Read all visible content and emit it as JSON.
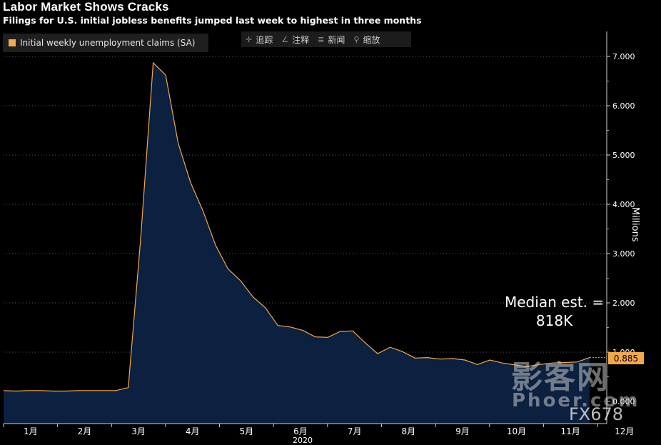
{
  "title": "Labor Market Shows Cracks",
  "subtitle": "Filings for U.S. initial jobless benefits jumped last week to highest in three months",
  "legend": {
    "label": "Initial weekly unemployment claims (SA)",
    "color": "#f4a84a"
  },
  "toolbar": [
    {
      "icon": "crosshair-icon",
      "glyph": "✛",
      "label": "追踪"
    },
    {
      "icon": "pen-icon",
      "glyph": "∠",
      "label": "注释"
    },
    {
      "icon": "news-icon",
      "glyph": "≣",
      "label": "新闻"
    },
    {
      "icon": "zoom-icon",
      "glyph": "⚲",
      "label": "缩放"
    }
  ],
  "annotation": {
    "line1": "Median est. =",
    "line2": "818K"
  },
  "last_value_label": "0.885",
  "year_label": "2020",
  "watermark": {
    "cn": "影客网",
    "en": "Phoer.com",
    "fx": "FX678"
  },
  "colors": {
    "line": "#f4a84a",
    "fill": "#0c2040",
    "background": "#000000"
  },
  "chart_data": {
    "type": "area",
    "ylabel": "Millions",
    "ylim": [
      0,
      7.5
    ],
    "yticks": [
      0,
      1,
      2,
      3,
      4,
      5,
      6,
      7
    ],
    "ytick_labels": [
      "0.000",
      "1.000",
      "2.000",
      "3.000",
      "4.000",
      "5.000",
      "6.000",
      "7.000"
    ],
    "month_labels": [
      "1月",
      "2月",
      "3月",
      "4月",
      "5月",
      "6月",
      "7月",
      "8月",
      "9月",
      "10月",
      "11月",
      "12月"
    ],
    "x_week_start": 0,
    "series": [
      {
        "name": "Initial weekly unemployment claims (SA)",
        "values": [
          0.22,
          0.21,
          0.22,
          0.22,
          0.21,
          0.21,
          0.22,
          0.22,
          0.22,
          0.22,
          0.28,
          3.31,
          6.87,
          6.62,
          5.24,
          4.44,
          3.86,
          3.17,
          2.69,
          2.45,
          2.12,
          1.9,
          1.54,
          1.51,
          1.44,
          1.31,
          1.3,
          1.42,
          1.43,
          1.19,
          0.97,
          1.1,
          1.01,
          0.88,
          0.89,
          0.86,
          0.87,
          0.84,
          0.75,
          0.84,
          0.78,
          0.74,
          0.71,
          0.75,
          0.78,
          0.79,
          0.8,
          0.89
        ]
      }
    ]
  }
}
